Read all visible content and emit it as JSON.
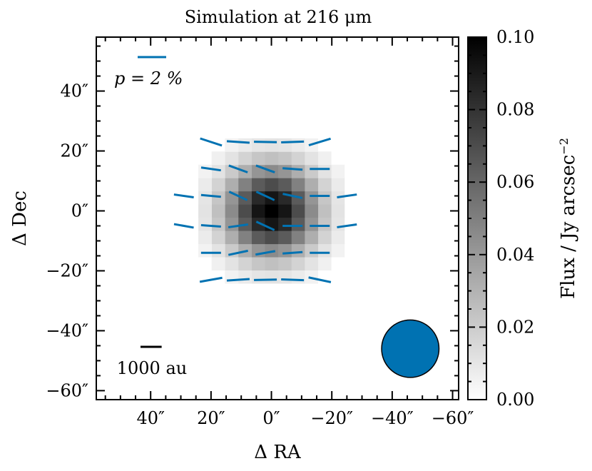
{
  "chart_data": {
    "type": "heatmap",
    "title": "Simulation at 216 μm",
    "xlabel": "Δ RA",
    "ylabel": "Δ Dec",
    "xlim": [
      58,
      -62
    ],
    "ylim": [
      -63,
      58
    ],
    "x_ticks": [
      {
        "value": 40,
        "label": "40″"
      },
      {
        "value": 20,
        "label": "20″"
      },
      {
        "value": 0,
        "label": "0″"
      },
      {
        "value": -20,
        "label": "−20″"
      },
      {
        "value": -40,
        "label": "−40″"
      },
      {
        "value": -60,
        "label": "−60″"
      }
    ],
    "y_ticks": [
      {
        "value": 40,
        "label": "40″"
      },
      {
        "value": 20,
        "label": "20″"
      },
      {
        "value": 0,
        "label": "0″"
      },
      {
        "value": -20,
        "label": "−20″"
      },
      {
        "value": -40,
        "label": "−40″"
      },
      {
        "value": -60,
        "label": "−60″"
      }
    ],
    "pixel_size_arcsec": 4.4,
    "gaussian_model": {
      "peak": 0.1,
      "sigma_arcsec": 10.5,
      "cutoff_radius_arcsec": 26
    },
    "colorbar": {
      "label": "Flux / Jy arcsec⁻²",
      "range": [
        0.0,
        0.1
      ],
      "colormap": "greys",
      "ticks": [
        {
          "value": 0.0,
          "label": "0.00"
        },
        {
          "value": 0.02,
          "label": "0.02"
        },
        {
          "value": 0.04,
          "label": "0.04"
        },
        {
          "value": 0.06,
          "label": "0.06"
        },
        {
          "value": 0.08,
          "label": "0.08"
        },
        {
          "value": 0.1,
          "label": "0.10"
        }
      ]
    },
    "polarization_vectors": {
      "color": "#0072b2",
      "reference_label": "p = 2 %",
      "reference_fraction_percent": 2,
      "vectors": [
        {
          "x": 20,
          "y": 23,
          "angle": 18,
          "p": 1.6
        },
        {
          "x": 11,
          "y": 23,
          "angle": 4,
          "p": 1.6
        },
        {
          "x": 2,
          "y": 23,
          "angle": 1,
          "p": 1.6
        },
        {
          "x": -7,
          "y": 23,
          "angle": -2,
          "p": 1.6
        },
        {
          "x": -16,
          "y": 23,
          "angle": -17,
          "p": 1.6
        },
        {
          "x": 20,
          "y": 14,
          "angle": 8,
          "p": 1.4
        },
        {
          "x": 11,
          "y": 14,
          "angle": 20,
          "p": 1.4
        },
        {
          "x": 2,
          "y": 14,
          "angle": 20,
          "p": 1.4
        },
        {
          "x": -7,
          "y": 14,
          "angle": 4,
          "p": 1.4
        },
        {
          "x": -16,
          "y": 14,
          "angle": 0,
          "p": 1.4
        },
        {
          "x": 29,
          "y": 5,
          "angle": 8,
          "p": 1.4
        },
        {
          "x": 20,
          "y": 5,
          "angle": 5,
          "p": 1.4
        },
        {
          "x": 11,
          "y": 5,
          "angle": 25,
          "p": 1.4
        },
        {
          "x": 2,
          "y": 5,
          "angle": 25,
          "p": 1.4
        },
        {
          "x": -7,
          "y": 5,
          "angle": 12,
          "p": 1.4
        },
        {
          "x": -16,
          "y": 5,
          "angle": 0,
          "p": 1.4
        },
        {
          "x": -25,
          "y": 5,
          "angle": -8,
          "p": 1.4
        },
        {
          "x": 29,
          "y": -5,
          "angle": 10,
          "p": 1.4
        },
        {
          "x": 20,
          "y": -5,
          "angle": 4,
          "p": 1.4
        },
        {
          "x": 11,
          "y": -5,
          "angle": -8,
          "p": 1.4
        },
        {
          "x": 2,
          "y": -5,
          "angle": 25,
          "p": 1.4
        },
        {
          "x": -7,
          "y": -5,
          "angle": 0,
          "p": 1.4
        },
        {
          "x": -16,
          "y": -5,
          "angle": 0,
          "p": 1.4
        },
        {
          "x": -25,
          "y": -5,
          "angle": -8,
          "p": 1.4
        },
        {
          "x": 20,
          "y": -14,
          "angle": 0,
          "p": 1.4
        },
        {
          "x": 11,
          "y": -14,
          "angle": -12,
          "p": 1.4
        },
        {
          "x": 2,
          "y": -14,
          "angle": -10,
          "p": 1.4
        },
        {
          "x": -7,
          "y": -14,
          "angle": -4,
          "p": 1.4
        },
        {
          "x": -16,
          "y": -14,
          "angle": 0,
          "p": 1.4
        },
        {
          "x": 20,
          "y": -23,
          "angle": -10,
          "p": 1.6
        },
        {
          "x": 11,
          "y": -23,
          "angle": -4,
          "p": 1.6
        },
        {
          "x": 2,
          "y": -23,
          "angle": -1,
          "p": 1.6
        },
        {
          "x": -7,
          "y": -23,
          "angle": 2,
          "p": 1.6
        },
        {
          "x": -16,
          "y": -23,
          "angle": 12,
          "p": 1.6
        }
      ]
    },
    "scale_bar": {
      "label": "1000 au",
      "length_arcsec": 7
    },
    "beam": {
      "x": -46,
      "y": -46,
      "diameter_arcsec": 19,
      "color": "#0072b2"
    }
  }
}
